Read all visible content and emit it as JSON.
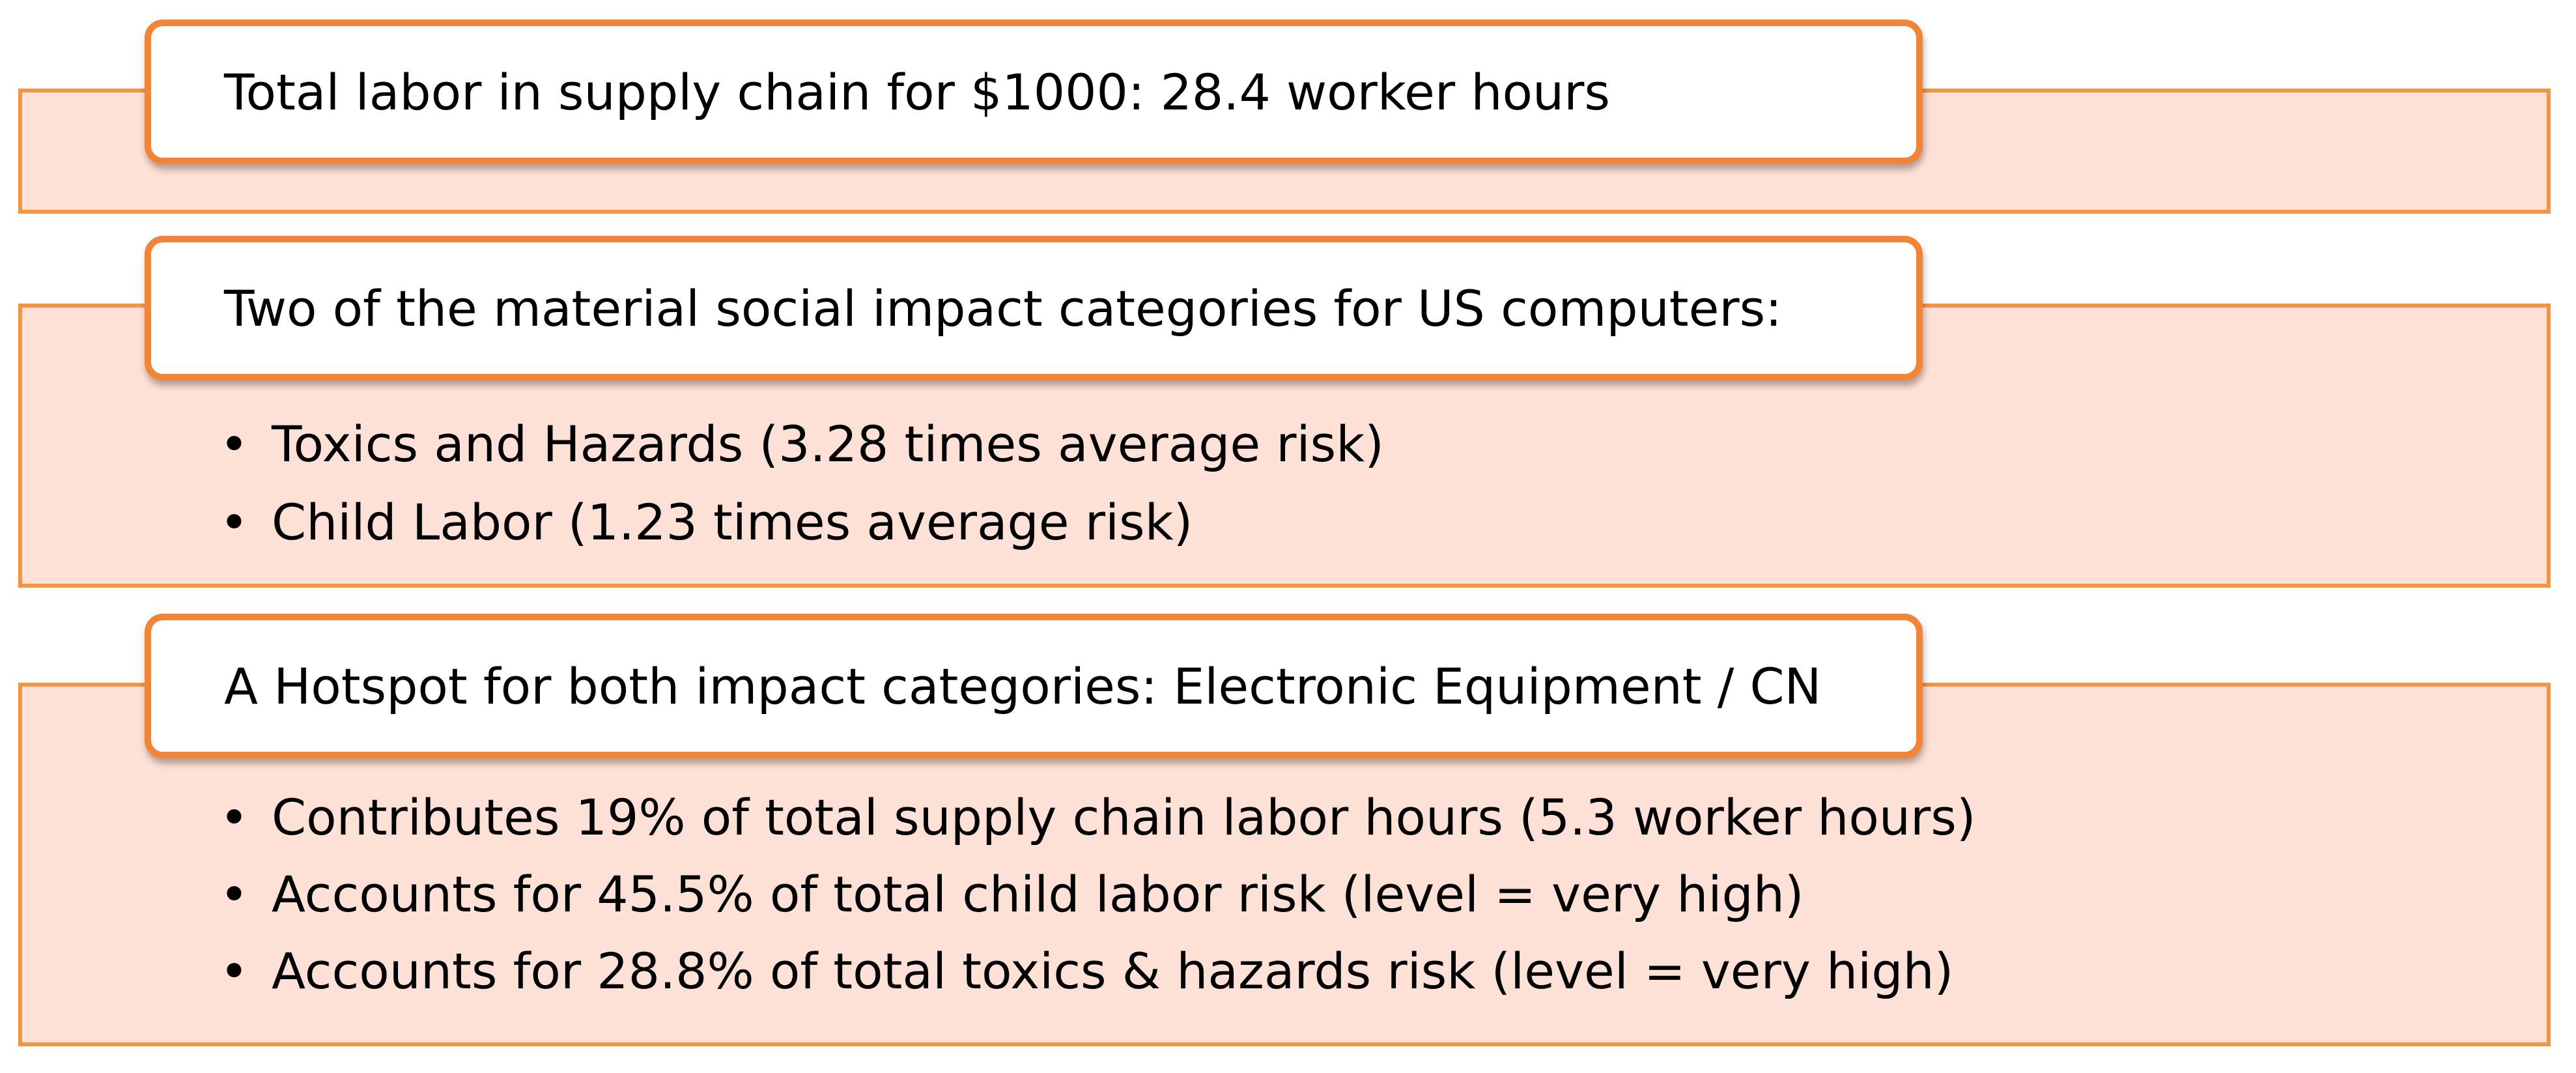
{
  "sections": [
    {
      "header": "Total labor in supply chain for $1000:  28.4 worker hours",
      "bullets": []
    },
    {
      "header": "Two of the material social impact categories for US computers:",
      "bullets": [
        "Toxics and Hazards (3.28 times average risk)",
        "Child Labor (1.23 times average risk)"
      ]
    },
    {
      "header": "A Hotspot for both impact categories: Electronic Equipment / CN",
      "bullets": [
        "Contributes 19% of total supply chain labor hours (5.3 worker hours)",
        "Accounts for 45.5% of total child labor risk (level = very high)",
        "Accounts for 28.8% of total toxics & hazards risk (level = very high)"
      ]
    }
  ],
  "colors": {
    "panel_fill": "#fde0d6",
    "panel_border": "#f6933f",
    "header_border": "#f28434",
    "header_fill": "#ffffff",
    "text": "#000000"
  }
}
